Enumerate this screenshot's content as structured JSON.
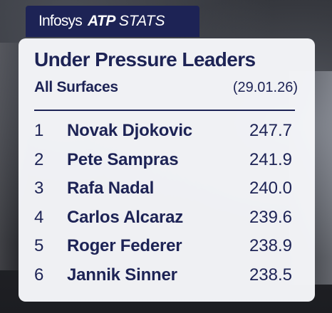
{
  "header": {
    "sponsor": "Infosys",
    "brand": "ATP",
    "section": "STATS"
  },
  "card": {
    "title": "Under Pressure Leaders",
    "subtitle": "All Surfaces",
    "date": "(29.01.26)"
  },
  "leaders": [
    {
      "rank": "1",
      "player": "Novak Djokovic",
      "value": "247.7"
    },
    {
      "rank": "2",
      "player": "Pete Sampras",
      "value": "241.9"
    },
    {
      "rank": "3",
      "player": "Rafa Nadal",
      "value": "240.0"
    },
    {
      "rank": "4",
      "player": "Carlos Alcaraz",
      "value": "239.6"
    },
    {
      "rank": "5",
      "player": "Roger Federer",
      "value": "238.9"
    },
    {
      "rank": "6",
      "player": "Jannik Sinner",
      "value": "238.5"
    }
  ],
  "colors": {
    "navy": "#1d2355",
    "card_bg": "#f6f7fa"
  }
}
